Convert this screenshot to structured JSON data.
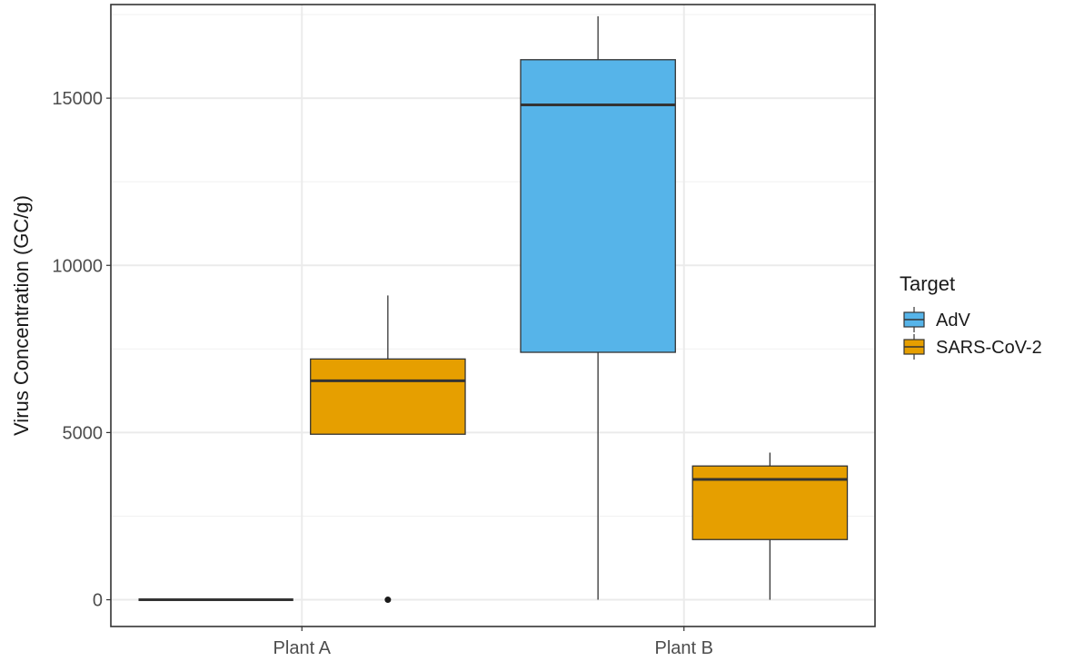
{
  "chart_data": {
    "type": "boxplot",
    "ylabel": "Virus Concentration (GC/g)",
    "xlabel": "",
    "categories": [
      "Plant A",
      "Plant B"
    ],
    "ylim": [
      -800,
      17800
    ],
    "yticks": [
      0,
      5000,
      10000,
      15000
    ],
    "grid": true,
    "legend": {
      "title": "Target",
      "position": "right"
    },
    "series": [
      {
        "name": "AdV",
        "color": "#56B4E9",
        "boxes": [
          {
            "category": "Plant A",
            "min": 0,
            "q1": 0,
            "median": 0,
            "q3": 0,
            "max": 0,
            "outliers": []
          },
          {
            "category": "Plant B",
            "min": 0,
            "q1": 7400,
            "median": 14800,
            "q3": 16150,
            "max": 17450,
            "outliers": []
          }
        ]
      },
      {
        "name": "SARS-CoV-2",
        "color": "#E69F00",
        "boxes": [
          {
            "category": "Plant A",
            "min": 4950,
            "q1": 4950,
            "median": 6550,
            "q3": 7200,
            "max": 9100,
            "outliers": [
              0
            ]
          },
          {
            "category": "Plant B",
            "min": 0,
            "q1": 1800,
            "median": 3600,
            "q3": 4000,
            "max": 4400,
            "outliers": []
          }
        ]
      }
    ]
  }
}
